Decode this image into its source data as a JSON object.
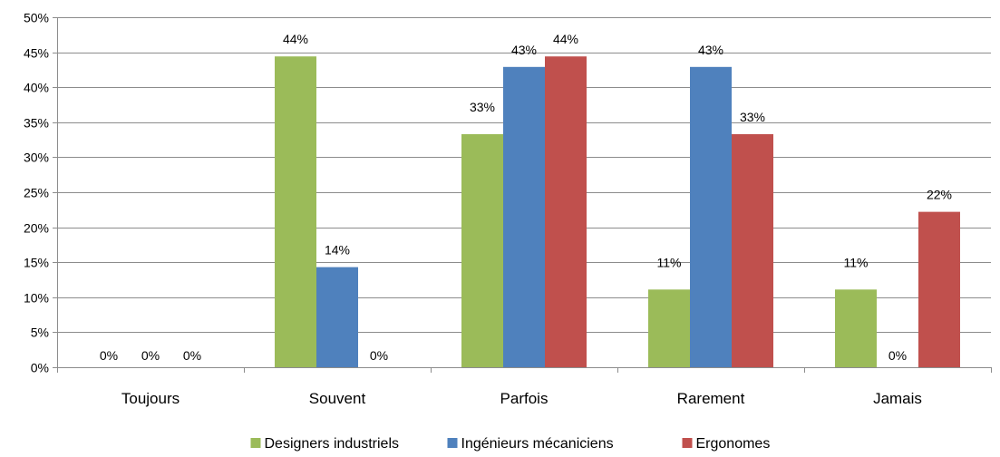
{
  "chart_data": {
    "type": "bar",
    "categories": [
      "Toujours",
      "Souvent",
      "Parfois",
      "Rarement",
      "Jamais"
    ],
    "series": [
      {
        "name": "Designers industriels",
        "color": "#9BBB59",
        "values": [
          0,
          44.4,
          33.3,
          11.1,
          11.1
        ],
        "labels": [
          "0%",
          "44%",
          "33%",
          "11%",
          "11%"
        ]
      },
      {
        "name": "Ingénieurs mécaniciens",
        "color": "#4F81BD",
        "values": [
          0,
          14.3,
          42.9,
          42.9,
          0
        ],
        "labels": [
          "0%",
          "14%",
          "43%",
          "43%",
          "0%"
        ]
      },
      {
        "name": "Ergonomes",
        "color": "#C0504D",
        "values": [
          0,
          0,
          44.4,
          33.3,
          22.2
        ],
        "labels": [
          "0%",
          "0%",
          "44%",
          "33%",
          "22%"
        ]
      }
    ],
    "yticks": [
      "0%",
      "5%",
      "10%",
      "15%",
      "20%",
      "25%",
      "30%",
      "35%",
      "40%",
      "45%",
      "50%"
    ],
    "ylim": [
      0,
      50
    ],
    "ytick_step": 5,
    "grid": "horizontal",
    "legend_position": "bottom"
  }
}
